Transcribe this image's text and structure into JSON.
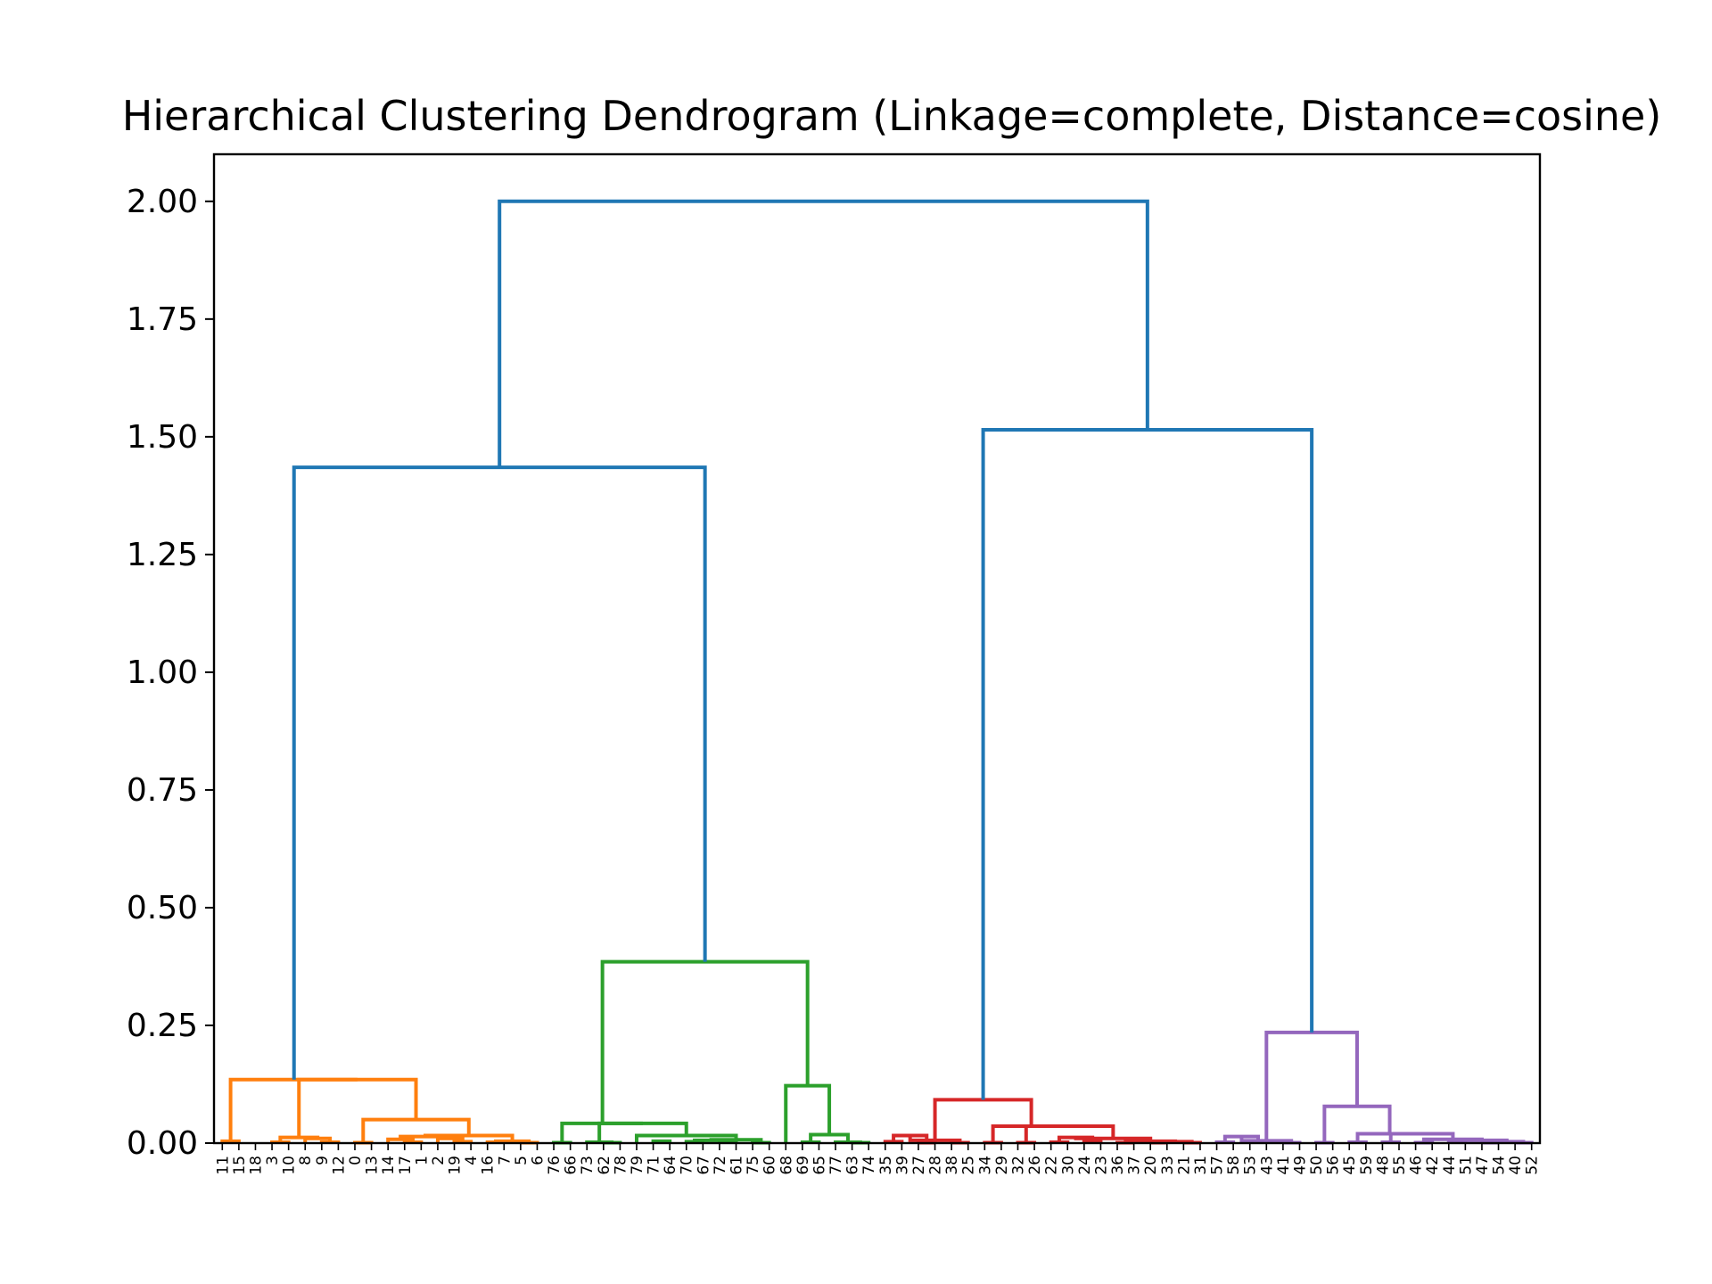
{
  "chart_data": {
    "type": "dendrogram",
    "title": "Hierarchical Clustering Dendrogram (Linkage=complete, Distance=cosine)",
    "xlabel": "",
    "ylabel": "",
    "ylim": [
      0,
      2.1
    ],
    "yticks": [
      "0.00",
      "0.25",
      "0.50",
      "0.75",
      "1.00",
      "1.25",
      "1.50",
      "1.75",
      "2.00"
    ],
    "leaves": [
      "11",
      "15",
      "18",
      "3",
      "10",
      "8",
      "9",
      "12",
      "0",
      "13",
      "14",
      "17",
      "1",
      "2",
      "19",
      "4",
      "16",
      "7",
      "5",
      "6",
      "76",
      "66",
      "73",
      "62",
      "78",
      "79",
      "71",
      "64",
      "70",
      "67",
      "72",
      "61",
      "75",
      "60",
      "68",
      "69",
      "65",
      "77",
      "63",
      "74",
      "35",
      "39",
      "27",
      "28",
      "38",
      "25",
      "34",
      "29",
      "32",
      "26",
      "22",
      "30",
      "24",
      "23",
      "36",
      "37",
      "20",
      "33",
      "21",
      "31",
      "57",
      "58",
      "53",
      "43",
      "41",
      "49",
      "50",
      "56",
      "45",
      "59",
      "48",
      "55",
      "46",
      "42",
      "44",
      "51",
      "47",
      "54",
      "40",
      "52"
    ],
    "colors": {
      "above_threshold": "#1f77b4",
      "orange": "#ff7f0e",
      "green": "#2ca02c",
      "red": "#d62728",
      "purple": "#9467bd"
    },
    "links": [
      {
        "x": [
          5,
          5,
          15,
          15
        ],
        "y": [
          0,
          0.004,
          0.004,
          0
        ],
        "color": "orange"
      },
      {
        "x": [
          35,
          35,
          45,
          45
        ],
        "y": [
          0,
          0.002,
          0.002,
          0
        ],
        "color": "orange"
      },
      {
        "x": [
          65,
          65,
          75,
          75
        ],
        "y": [
          0,
          0.002,
          0.002,
          0
        ],
        "color": "orange"
      },
      {
        "x": [
          55,
          55,
          70,
          70
        ],
        "y": [
          0,
          0.01,
          0.01,
          0.002
        ],
        "color": "orange"
      },
      {
        "x": [
          40,
          40,
          62.5,
          62.5
        ],
        "y": [
          0.002,
          0.012,
          0.012,
          0.01
        ],
        "color": "orange"
      },
      {
        "x": [
          85,
          85,
          95,
          95
        ],
        "y": [
          0,
          0.001,
          0.001,
          0
        ],
        "color": "orange"
      },
      {
        "x": [
          115,
          115,
          125,
          125
        ],
        "y": [
          0,
          0.002,
          0.002,
          0
        ],
        "color": "orange"
      },
      {
        "x": [
          105,
          105,
          120,
          120
        ],
        "y": [
          0,
          0.008,
          0.008,
          0.002
        ],
        "color": "orange"
      },
      {
        "x": [
          145,
          145,
          155,
          155
        ],
        "y": [
          0,
          0.003,
          0.003,
          0
        ],
        "color": "orange"
      },
      {
        "x": [
          135,
          135,
          150,
          150
        ],
        "y": [
          0,
          0.01,
          0.01,
          0.003
        ],
        "color": "orange"
      },
      {
        "x": [
          112.5,
          112.5,
          142.5,
          142.5
        ],
        "y": [
          0.008,
          0.014,
          0.014,
          0.01
        ],
        "color": "orange"
      },
      {
        "x": [
          165,
          165,
          175,
          175
        ],
        "y": [
          0,
          0.002,
          0.002,
          0
        ],
        "color": "orange"
      },
      {
        "x": [
          185,
          185,
          195,
          195
        ],
        "y": [
          0,
          0.001,
          0.001,
          0
        ],
        "color": "orange"
      },
      {
        "x": [
          170,
          170,
          190,
          190
        ],
        "y": [
          0.002,
          0.004,
          0.004,
          0.001
        ],
        "color": "orange"
      },
      {
        "x": [
          127.5,
          127.5,
          180,
          180
        ],
        "y": [
          0.014,
          0.016,
          0.016,
          0.004
        ],
        "color": "orange"
      },
      {
        "x": [
          90,
          90,
          153.75,
          153.75
        ],
        "y": [
          0.001,
          0.05,
          0.05,
          0.016
        ],
        "color": "orange"
      },
      {
        "x": [
          51.25,
          51.25,
          121.875,
          121.875
        ],
        "y": [
          0.012,
          0.135,
          0.135,
          0.05
        ],
        "color": "orange"
      },
      {
        "x": [
          10,
          10,
          86.5625,
          86.5625
        ],
        "y": [
          0.004,
          0.135,
          0.135,
          0.135
        ],
        "color": "orange"
      },
      {
        "x": [
          205,
          205,
          215,
          215
        ],
        "y": [
          0,
          0.001,
          0.001,
          0
        ],
        "color": "green"
      },
      {
        "x": [
          235,
          235,
          245,
          245
        ],
        "y": [
          0,
          0.001,
          0.001,
          0
        ],
        "color": "green"
      },
      {
        "x": [
          225,
          225,
          240,
          240
        ],
        "y": [
          0,
          0.002,
          0.002,
          0.001
        ],
        "color": "green"
      },
      {
        "x": [
          265,
          265,
          275,
          275
        ],
        "y": [
          0,
          0.004,
          0.004,
          0
        ],
        "color": "green"
      },
      {
        "x": [
          285,
          285,
          295,
          295
        ],
        "y": [
          0,
          0.003,
          0.003,
          0
        ],
        "color": "green"
      },
      {
        "x": [
          305,
          305,
          315,
          315
        ],
        "y": [
          0,
          0.002,
          0.002,
          0
        ],
        "color": "green"
      },
      {
        "x": [
          290,
          290,
          310,
          310
        ],
        "y": [
          0.003,
          0.006,
          0.006,
          0.002
        ],
        "color": "green"
      },
      {
        "x": [
          325,
          325,
          335,
          335
        ],
        "y": [
          0,
          0.001,
          0.001,
          0
        ],
        "color": "green"
      },
      {
        "x": [
          300,
          300,
          330,
          330
        ],
        "y": [
          0.006,
          0.007,
          0.007,
          0.001
        ],
        "color": "green"
      },
      {
        "x": [
          255,
          255,
          315,
          315
        ],
        "y": [
          0,
          0.016,
          0.016,
          0.007
        ],
        "color": "green"
      },
      {
        "x": [
          232.5,
          232.5,
          285,
          285
        ],
        "y": [
          0.002,
          0.042,
          0.042,
          0.016
        ],
        "color": "green"
      },
      {
        "x": [
          210,
          210,
          258.75,
          258.75
        ],
        "y": [
          0.001,
          0.042,
          0.042,
          0.042
        ],
        "color": "green"
      },
      {
        "x": [
          355,
          355,
          365,
          365
        ],
        "y": [
          0,
          0.002,
          0.002,
          0
        ],
        "color": "green"
      },
      {
        "x": [
          385,
          385,
          395,
          395
        ],
        "y": [
          0,
          0.001,
          0.001,
          0
        ],
        "color": "green"
      },
      {
        "x": [
          375,
          375,
          390,
          390
        ],
        "y": [
          0,
          0.002,
          0.002,
          0.001
        ],
        "color": "green"
      },
      {
        "x": [
          360,
          360,
          382.5,
          382.5
        ],
        "y": [
          0.002,
          0.018,
          0.018,
          0.002
        ],
        "color": "green"
      },
      {
        "x": [
          345,
          345,
          371.25,
          371.25
        ],
        "y": [
          0,
          0.122,
          0.122,
          0.018
        ],
        "color": "green"
      },
      {
        "x": [
          234.375,
          234.375,
          358.125,
          358.125
        ],
        "y": [
          0.042,
          0.385,
          0.385,
          0.122
        ],
        "color": "green"
      },
      {
        "x": [
          405,
          405,
          415,
          415
        ],
        "y": [
          0,
          0.003,
          0.003,
          0
        ],
        "color": "red"
      },
      {
        "x": [
          425,
          425,
          435,
          435
        ],
        "y": [
          0,
          0.001,
          0.001,
          0
        ],
        "color": "red"
      },
      {
        "x": [
          410,
          410,
          430,
          430
        ],
        "y": [
          0.003,
          0.016,
          0.016,
          0.001
        ],
        "color": "red"
      },
      {
        "x": [
          445,
          445,
          455,
          455
        ],
        "y": [
          0,
          0.001,
          0.001,
          0
        ],
        "color": "red"
      },
      {
        "x": [
          420,
          420,
          450,
          450
        ],
        "y": [
          0.016,
          0.006,
          0.006,
          0.001
        ],
        "color": "red"
      },
      {
        "x": [
          465,
          465,
          475,
          475
        ],
        "y": [
          0,
          0.001,
          0.001,
          0
        ],
        "color": "red"
      },
      {
        "x": [
          485,
          485,
          495,
          495
        ],
        "y": [
          0,
          0.001,
          0.001,
          0
        ],
        "color": "red"
      },
      {
        "x": [
          505,
          505,
          515,
          515
        ],
        "y": [
          0,
          0.002,
          0.002,
          0
        ],
        "color": "red"
      },
      {
        "x": [
          525,
          525,
          535,
          535
        ],
        "y": [
          0,
          0.004,
          0.004,
          0
        ],
        "color": "red"
      },
      {
        "x": [
          510,
          510,
          530,
          530
        ],
        "y": [
          0.002,
          0.012,
          0.012,
          0.004
        ],
        "color": "red"
      },
      {
        "x": [
          545,
          545,
          555,
          555
        ],
        "y": [
          0,
          0.001,
          0.001,
          0
        ],
        "color": "red"
      },
      {
        "x": [
          565,
          565,
          575,
          575
        ],
        "y": [
          0,
          0.001,
          0.001,
          0
        ],
        "color": "red"
      },
      {
        "x": [
          585,
          585,
          595,
          595
        ],
        "y": [
          0,
          0.001,
          0.001,
          0
        ],
        "color": "red"
      },
      {
        "x": [
          570,
          570,
          590,
          590
        ],
        "y": [
          0.001,
          0.003,
          0.003,
          0.001
        ],
        "color": "red"
      },
      {
        "x": [
          550,
          550,
          580,
          580
        ],
        "y": [
          0.001,
          0.004,
          0.004,
          0.003
        ],
        "color": "red"
      },
      {
        "x": [
          520,
          520,
          565,
          565
        ],
        "y": [
          0.012,
          0.01,
          0.01,
          0.004
        ],
        "color": "red"
      },
      {
        "x": [
          490,
          490,
          542.5,
          542.5
        ],
        "y": [
          0.001,
          0.036,
          0.036,
          0.01
        ],
        "color": "red"
      },
      {
        "x": [
          470,
          470,
          516.25,
          516.25
        ],
        "y": [
          0.001,
          0.036,
          0.036,
          0.036
        ],
        "color": "red"
      },
      {
        "x": [
          435,
          435,
          493.125,
          493.125
        ],
        "y": [
          0.006,
          0.092,
          0.092,
          0.036
        ],
        "color": "red"
      },
      {
        "x": [
          605,
          605,
          615,
          615
        ],
        "y": [
          0,
          0.002,
          0.002,
          0
        ],
        "color": "purple"
      },
      {
        "x": [
          625,
          625,
          635,
          635
        ],
        "y": [
          0,
          0.003,
          0.003,
          0
        ],
        "color": "purple"
      },
      {
        "x": [
          610,
          610,
          630,
          630
        ],
        "y": [
          0.002,
          0.014,
          0.014,
          0.003
        ],
        "color": "purple"
      },
      {
        "x": [
          645,
          645,
          655,
          655
        ],
        "y": [
          0,
          0.001,
          0.001,
          0
        ],
        "color": "purple"
      },
      {
        "x": [
          620,
          620,
          650,
          650
        ],
        "y": [
          0.014,
          0.005,
          0.005,
          0.001
        ],
        "color": "purple"
      },
      {
        "x": [
          665,
          665,
          675,
          675
        ],
        "y": [
          0,
          0.001,
          0.001,
          0
        ],
        "color": "purple"
      },
      {
        "x": [
          685,
          685,
          695,
          695
        ],
        "y": [
          0,
          0.002,
          0.002,
          0
        ],
        "color": "purple"
      },
      {
        "x": [
          705,
          705,
          715,
          715
        ],
        "y": [
          0,
          0.002,
          0.002,
          0
        ],
        "color": "purple"
      },
      {
        "x": [
          725,
          725,
          735,
          735
        ],
        "y": [
          0,
          0.001,
          0.001,
          0
        ],
        "color": "purple"
      },
      {
        "x": [
          745,
          745,
          755,
          755
        ],
        "y": [
          0,
          0.004,
          0.004,
          0
        ],
        "color": "purple"
      },
      {
        "x": [
          765,
          765,
          775,
          775
        ],
        "y": [
          0,
          0.001,
          0.001,
          0
        ],
        "color": "purple"
      },
      {
        "x": [
          785,
          785,
          795,
          795
        ],
        "y": [
          0,
          0.001,
          0.001,
          0
        ],
        "color": "purple"
      },
      {
        "x": [
          770,
          770,
          790,
          790
        ],
        "y": [
          0.001,
          0.003,
          0.003,
          0.001
        ],
        "color": "purple"
      },
      {
        "x": [
          750,
          750,
          780,
          780
        ],
        "y": [
          0.004,
          0.006,
          0.006,
          0.003
        ],
        "color": "purple"
      },
      {
        "x": [
          730,
          730,
          765,
          765
        ],
        "y": [
          0.001,
          0.008,
          0.008,
          0.006
        ],
        "color": "purple"
      },
      {
        "x": [
          710,
          710,
          747.5,
          747.5
        ],
        "y": [
          0.002,
          0.02,
          0.02,
          0.008
        ],
        "color": "purple"
      },
      {
        "x": [
          690,
          690,
          728.75,
          728.75
        ],
        "y": [
          0.002,
          0.02,
          0.02,
          0.02
        ],
        "color": "purple"
      },
      {
        "x": [
          670,
          670,
          709.375,
          709.375
        ],
        "y": [
          0.001,
          0.078,
          0.078,
          0.02
        ],
        "color": "purple"
      },
      {
        "x": [
          635,
          635,
          689.6875,
          689.6875
        ],
        "y": [
          0.005,
          0.235,
          0.235,
          0.078
        ],
        "color": "purple"
      },
      {
        "x": [
          48.28125,
          48.28125,
          296.25,
          296.25
        ],
        "y": [
          0.135,
          1.435,
          1.435,
          0.385
        ],
        "color": "above_threshold"
      },
      {
        "x": [
          464.0625,
          464.0625,
          662.34375,
          662.34375
        ],
        "y": [
          0.092,
          1.515,
          1.515,
          0.235
        ],
        "color": "above_threshold"
      },
      {
        "x": [
          172.265625,
          172.265625,
          563.203125,
          563.203125
        ],
        "y": [
          1.435,
          2.0,
          2.0,
          1.515
        ],
        "color": "above_threshold"
      }
    ]
  }
}
